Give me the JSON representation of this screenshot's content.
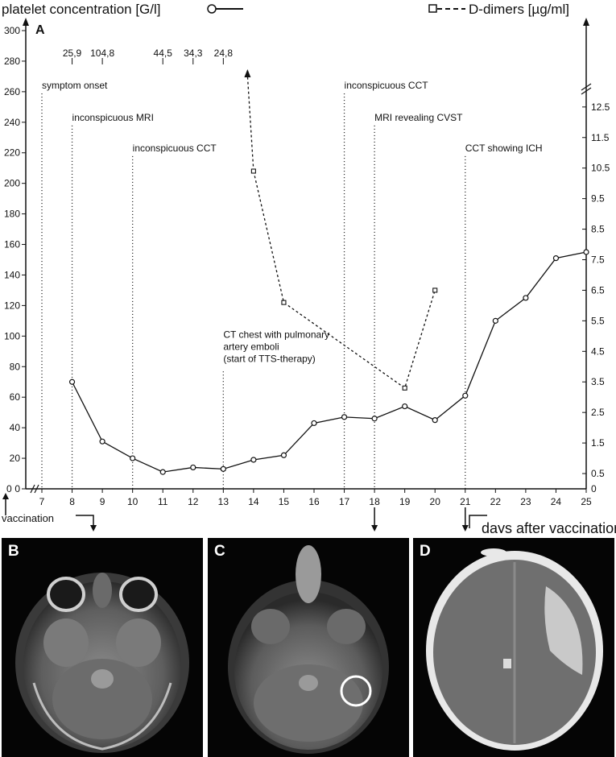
{
  "chart_data": {
    "type": "line",
    "panel_label": "A",
    "x_label": "days after vaccination [d]",
    "x_ticks": [
      "7",
      "8",
      "9",
      "10",
      "11",
      "12",
      "13",
      "14",
      "15",
      "16",
      "17",
      "18",
      "19",
      "20",
      "21",
      "22",
      "23",
      "24",
      "25"
    ],
    "x_origin_label": "0",
    "xlim": [
      7,
      25
    ],
    "y_left": {
      "label": "platelet concentration [G/l]",
      "ticks": [
        0,
        20,
        40,
        60,
        80,
        100,
        120,
        140,
        160,
        180,
        200,
        220,
        240,
        260,
        280,
        300
      ],
      "ylim": [
        0,
        300
      ],
      "linestyle": "solid",
      "marker": "circle"
    },
    "y_right": {
      "label": "D-dimers [µg/ml]",
      "ticks": [
        "0",
        "0.5",
        "1.5",
        "2.5",
        "3.5",
        "4.5",
        "5.5",
        "6.5",
        "7.5",
        "8.5",
        "9.5",
        "10.5",
        "11.5",
        "12.5"
      ],
      "ylim": [
        0,
        15
      ],
      "axis_break": true,
      "linestyle": "dashed",
      "marker": "square"
    },
    "series": [
      {
        "name": "platelet concentration [G/l]",
        "axis": "left",
        "points": [
          [
            8,
            70
          ],
          [
            9,
            31
          ],
          [
            10,
            20
          ],
          [
            11,
            11
          ],
          [
            12,
            14
          ],
          [
            13,
            13
          ],
          [
            14,
            19
          ],
          [
            15,
            22
          ],
          [
            16,
            43
          ],
          [
            17,
            47
          ],
          [
            18,
            46
          ],
          [
            19,
            54
          ],
          [
            20,
            45
          ],
          [
            21,
            61
          ],
          [
            22,
            110
          ],
          [
            23,
            125
          ],
          [
            24,
            151
          ],
          [
            25,
            155
          ]
        ]
      },
      {
        "name": "D-dimers [µg/ml]",
        "axis": "right",
        "points": [
          [
            14,
            10.4
          ],
          [
            15,
            6.1
          ],
          [
            19,
            3.3
          ],
          [
            20,
            6.5
          ]
        ],
        "off_scale_arrow_day": 13.8
      }
    ],
    "off_scale_values": [
      {
        "day": 8,
        "label": "25,9"
      },
      {
        "day": 9,
        "label": "104,8"
      },
      {
        "day": 11,
        "label": "44,5"
      },
      {
        "day": 12,
        "label": "34,3"
      },
      {
        "day": 13,
        "label": "24,8"
      }
    ],
    "events": [
      {
        "day": 7,
        "label": "symptom onset",
        "label_y": 262
      },
      {
        "day": 8,
        "label": "inconspicuous MRI",
        "label_y": 241
      },
      {
        "day": 10,
        "label": "inconspicuous CCT",
        "label_y": 221
      },
      {
        "day": 13,
        "label_lines": [
          "CT chest with pulmonary",
          "artery emboli",
          "(start of TTS-therapy)"
        ],
        "label_y": 80
      },
      {
        "day": 17,
        "label": "inconspicuous CCT",
        "label_y": 262
      },
      {
        "day": 18,
        "label": "MRI revealing CVST",
        "label_y": 241
      },
      {
        "day": 21,
        "label": "CCT showing ICH",
        "label_y": 221
      }
    ],
    "vaccination_label": "vaccination",
    "image_arrow_days": [
      18,
      21
    ]
  },
  "images": [
    {
      "label": "B"
    },
    {
      "label": "C"
    },
    {
      "label": "D"
    }
  ]
}
